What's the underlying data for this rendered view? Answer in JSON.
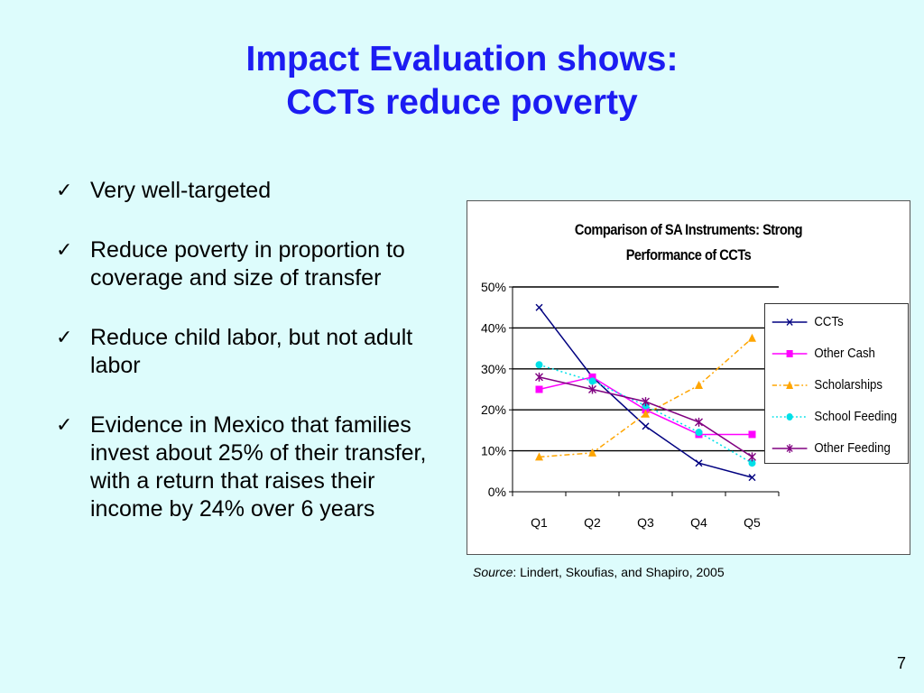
{
  "slide": {
    "title_line1": "Impact Evaluation shows:",
    "title_line2": "CCTs reduce poverty",
    "page_number": "7"
  },
  "bullets": [
    {
      "text": "Very well-targeted"
    },
    {
      "text": "Reduce poverty in proportion to coverage and size of transfer"
    },
    {
      "text": "Reduce child labor, but not adult labor"
    },
    {
      "text": "Evidence in Mexico that families invest about 25% of their transfer, with a return that raises their income by 24% over 6 years"
    }
  ],
  "source": {
    "label": "Source",
    "text": ":  Lindert, Skoufias, and Shapiro, 2005"
  },
  "colors": {
    "title": "#1c1cf2",
    "background": "#ddfcfc"
  },
  "chart_data": {
    "type": "line",
    "title_line1": "Comparison of SA Instruments: Strong",
    "title_line2": "Performance of CCTs",
    "categories": [
      "Q1",
      "Q2",
      "Q3",
      "Q4",
      "Q5"
    ],
    "ylim": [
      0,
      0.5
    ],
    "yticks": [
      "0%",
      "10%",
      "20%",
      "30%",
      "40%",
      "50%"
    ],
    "grid": true,
    "legend_position": "right",
    "series": [
      {
        "name": "CCTs",
        "values": [
          0.45,
          0.28,
          0.16,
          0.07,
          0.035
        ],
        "color": "#000080",
        "dash": "",
        "marker": "x"
      },
      {
        "name": "Other Cash",
        "values": [
          0.25,
          0.28,
          0.2,
          0.14,
          0.14
        ],
        "color": "#ff00ff",
        "dash": "",
        "marker": "square"
      },
      {
        "name": "Scholarships",
        "values": [
          0.085,
          0.095,
          0.19,
          0.26,
          0.375
        ],
        "color": "#ffa500",
        "dash": "6,3,2,3",
        "marker": "triangle"
      },
      {
        "name": "School Feeding",
        "values": [
          0.31,
          0.27,
          0.21,
          0.145,
          0.07
        ],
        "color": "#00e0e8",
        "dash": "2,3",
        "marker": "circle"
      },
      {
        "name": "Other Feeding",
        "values": [
          0.28,
          0.25,
          0.22,
          0.17,
          0.085
        ],
        "color": "#800080",
        "dash": "",
        "marker": "star"
      }
    ]
  }
}
